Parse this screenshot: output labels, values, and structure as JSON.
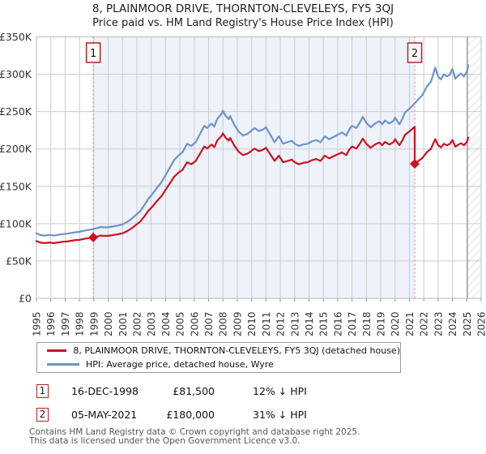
{
  "header": {
    "title": "8, PLAINMOOR DRIVE, THORNTON-CLEVELEYS, FY5 3QJ",
    "subtitle": "Price paid vs. HM Land Registry's House Price Index (HPI)"
  },
  "legend": {
    "series1": "8, PLAINMOOR DRIVE, THORNTON-CLEVELEYS, FY5 3QJ (detached house)",
    "series2": "HPI: Average price, detached house, Wyre"
  },
  "annotations": [
    {
      "num": "1",
      "date": "16-DEC-1998",
      "price": "£81,500",
      "hpi_diff": "12% ↓ HPI"
    },
    {
      "num": "2",
      "date": "05-MAY-2021",
      "price": "£180,000",
      "hpi_diff": "31% ↓ HPI"
    }
  ],
  "footer": {
    "line1": "Contains HM Land Registry data © Crown copyright and database right 2025.",
    "line2": "This data is licensed under the Open Government Licence v3.0."
  },
  "colors": {
    "property_line": "#cc1122",
    "hpi_line": "#6b94c7",
    "shade": "#eef2fa",
    "grid": "#cccccc",
    "plot_border": "#bbbbbb",
    "sale_dotted": "#e88a8a",
    "marker_border": "#b22222",
    "hatch_line": "#c9c9c9",
    "hatch_edge": "#999999",
    "axis_text": "#333333"
  },
  "chart_data": {
    "type": "line",
    "title": "8, PLAINMOOR DRIVE, THORNTON-CLEVELEYS, FY5 3QJ",
    "subtitle": "Price paid vs. HM Land Registry's House Price Index (HPI)",
    "xlim": [
      1995,
      2026
    ],
    "ylim": [
      0,
      350000
    ],
    "grid": true,
    "legend_position": "bottom",
    "y_ticks": [
      {
        "value": 0,
        "label": "£0"
      },
      {
        "value": 50,
        "label": "£50K"
      },
      {
        "value": 100,
        "label": "£100K"
      },
      {
        "value": 150,
        "label": "£150K"
      },
      {
        "value": 200,
        "label": "£200K"
      },
      {
        "value": 250,
        "label": "£250K"
      },
      {
        "value": 300,
        "label": "£300K"
      },
      {
        "value": 350,
        "label": "£350K"
      }
    ],
    "x_ticks": [
      1995,
      1996,
      1997,
      1998,
      1999,
      2000,
      2001,
      2002,
      2003,
      2004,
      2005,
      2006,
      2007,
      2008,
      2009,
      2010,
      2011,
      2012,
      2013,
      2014,
      2015,
      2016,
      2017,
      2018,
      2019,
      2020,
      2021,
      2022,
      2023,
      2024,
      2025,
      2026
    ],
    "shaded_region": [
      1998.96,
      2021.37
    ],
    "hatch_region": [
      2025.05,
      2026
    ],
    "sales": [
      {
        "num": "1",
        "x": 1998.96,
        "date": "16-DEC-1998",
        "price_k": 81.5,
        "pct_below_hpi": 12
      },
      {
        "num": "2",
        "x": 2021.37,
        "date": "05-MAY-2021",
        "price_k": 180.0,
        "pct_below_hpi": 31
      }
    ],
    "series": [
      {
        "name": "HPI: Average price, detached house, Wyre",
        "unit": "GBP_thousands",
        "points": [
          [
            1995.0,
            87
          ],
          [
            1995.3,
            84.5
          ],
          [
            1995.6,
            84
          ],
          [
            1995.9,
            85
          ],
          [
            1996.2,
            84
          ],
          [
            1996.5,
            85
          ],
          [
            1996.8,
            86
          ],
          [
            1997.1,
            86.5
          ],
          [
            1997.4,
            87.5
          ],
          [
            1997.7,
            88.5
          ],
          [
            1998.0,
            89
          ],
          [
            1998.3,
            90.5
          ],
          [
            1998.6,
            91.5
          ],
          [
            1998.96,
            92.6
          ],
          [
            1999.2,
            94
          ],
          [
            1999.5,
            95.5
          ],
          [
            1999.8,
            95
          ],
          [
            2000.1,
            95.5
          ],
          [
            2000.4,
            96.5
          ],
          [
            2000.7,
            97.5
          ],
          [
            2001.0,
            99
          ],
          [
            2001.3,
            102
          ],
          [
            2001.6,
            106
          ],
          [
            2001.9,
            111
          ],
          [
            2002.2,
            116
          ],
          [
            2002.5,
            124
          ],
          [
            2002.8,
            133
          ],
          [
            2003.1,
            140
          ],
          [
            2003.4,
            148
          ],
          [
            2003.7,
            155
          ],
          [
            2004.0,
            165
          ],
          [
            2004.3,
            175
          ],
          [
            2004.6,
            185
          ],
          [
            2004.9,
            191
          ],
          [
            2005.2,
            196
          ],
          [
            2005.5,
            207
          ],
          [
            2005.8,
            204
          ],
          [
            2006.1,
            209
          ],
          [
            2006.4,
            220
          ],
          [
            2006.7,
            231
          ],
          [
            2006.9,
            228
          ],
          [
            2007.2,
            234
          ],
          [
            2007.4,
            230
          ],
          [
            2007.6,
            240
          ],
          [
            2007.9,
            247
          ],
          [
            2008.0,
            251
          ],
          [
            2008.2,
            244
          ],
          [
            2008.4,
            240
          ],
          [
            2008.5,
            244
          ],
          [
            2008.8,
            232
          ],
          [
            2009.1,
            223
          ],
          [
            2009.4,
            218
          ],
          [
            2009.7,
            220
          ],
          [
            2009.9,
            223
          ],
          [
            2010.2,
            228
          ],
          [
            2010.5,
            224
          ],
          [
            2010.8,
            226
          ],
          [
            2011.0,
            229
          ],
          [
            2011.3,
            219
          ],
          [
            2011.6,
            209
          ],
          [
            2011.9,
            217
          ],
          [
            2012.2,
            207
          ],
          [
            2012.5,
            209
          ],
          [
            2012.8,
            211
          ],
          [
            2013.0,
            207
          ],
          [
            2013.3,
            204
          ],
          [
            2013.6,
            206
          ],
          [
            2013.9,
            207
          ],
          [
            2014.2,
            210
          ],
          [
            2014.5,
            212
          ],
          [
            2014.8,
            209
          ],
          [
            2015.1,
            217
          ],
          [
            2015.4,
            213
          ],
          [
            2015.7,
            216
          ],
          [
            2016.0,
            219
          ],
          [
            2016.3,
            222
          ],
          [
            2016.6,
            218
          ],
          [
            2016.8,
            226
          ],
          [
            2017.0,
            231
          ],
          [
            2017.3,
            228
          ],
          [
            2017.5,
            234
          ],
          [
            2017.75,
            243
          ],
          [
            2018.0,
            235
          ],
          [
            2018.3,
            229
          ],
          [
            2018.6,
            234
          ],
          [
            2018.9,
            237
          ],
          [
            2019.1,
            233
          ],
          [
            2019.3,
            238
          ],
          [
            2019.6,
            234
          ],
          [
            2019.9,
            238
          ],
          [
            2020.0,
            242
          ],
          [
            2020.3,
            233
          ],
          [
            2020.5,
            240
          ],
          [
            2020.7,
            249
          ],
          [
            2021.0,
            254
          ],
          [
            2021.37,
            261
          ],
          [
            2021.6,
            266
          ],
          [
            2021.9,
            272
          ],
          [
            2022.2,
            283
          ],
          [
            2022.5,
            290
          ],
          [
            2022.8,
            309
          ],
          [
            2023.0,
            297
          ],
          [
            2023.2,
            293
          ],
          [
            2023.4,
            300
          ],
          [
            2023.6,
            297
          ],
          [
            2023.8,
            299
          ],
          [
            2024.0,
            307
          ],
          [
            2024.2,
            294
          ],
          [
            2024.4,
            298
          ],
          [
            2024.6,
            301
          ],
          [
            2024.8,
            297
          ],
          [
            2025.0,
            303
          ],
          [
            2025.1,
            312
          ]
        ]
      },
      {
        "name": "8, PLAINMOOR DRIVE, THORNTON-CLEVELEYS, FY5 3QJ (detached house)",
        "unit": "GBP_thousands",
        "points": [
          [
            1995.0,
            76.6
          ],
          [
            1995.3,
            74.4
          ],
          [
            1995.6,
            73.9
          ],
          [
            1995.9,
            74.8
          ],
          [
            1996.2,
            73.9
          ],
          [
            1996.5,
            74.8
          ],
          [
            1996.8,
            75.7
          ],
          [
            1997.1,
            76.1
          ],
          [
            1997.4,
            77.0
          ],
          [
            1997.7,
            77.9
          ],
          [
            1998.0,
            78.3
          ],
          [
            1998.3,
            79.6
          ],
          [
            1998.6,
            80.5
          ],
          [
            1998.96,
            81.5
          ],
          [
            1999.2,
            82.7
          ],
          [
            1999.5,
            84.0
          ],
          [
            1999.8,
            83.6
          ],
          [
            2000.1,
            84.0
          ],
          [
            2000.4,
            84.9
          ],
          [
            2000.7,
            85.8
          ],
          [
            2001.0,
            87.1
          ],
          [
            2001.3,
            89.8
          ],
          [
            2001.6,
            93.3
          ],
          [
            2001.9,
            97.7
          ],
          [
            2002.2,
            102.1
          ],
          [
            2002.5,
            109.1
          ],
          [
            2002.8,
            117.0
          ],
          [
            2003.1,
            123.2
          ],
          [
            2003.4,
            130.2
          ],
          [
            2003.7,
            136.4
          ],
          [
            2004.0,
            145.2
          ],
          [
            2004.3,
            154.0
          ],
          [
            2004.6,
            162.8
          ],
          [
            2004.9,
            168.1
          ],
          [
            2005.2,
            172.5
          ],
          [
            2005.5,
            182.2
          ],
          [
            2005.8,
            179.5
          ],
          [
            2006.1,
            183.9
          ],
          [
            2006.4,
            193.6
          ],
          [
            2006.7,
            203.3
          ],
          [
            2006.9,
            200.6
          ],
          [
            2007.2,
            205.9
          ],
          [
            2007.4,
            202.4
          ],
          [
            2007.6,
            211.2
          ],
          [
            2007.9,
            217.4
          ],
          [
            2008.0,
            220.9
          ],
          [
            2008.2,
            214.7
          ],
          [
            2008.4,
            211.2
          ],
          [
            2008.5,
            214.7
          ],
          [
            2008.8,
            204.2
          ],
          [
            2009.1,
            196.2
          ],
          [
            2009.4,
            191.8
          ],
          [
            2009.7,
            193.6
          ],
          [
            2009.9,
            196.2
          ],
          [
            2010.2,
            200.6
          ],
          [
            2010.5,
            197.1
          ],
          [
            2010.8,
            198.9
          ],
          [
            2011.0,
            201.5
          ],
          [
            2011.3,
            192.7
          ],
          [
            2011.6,
            183.9
          ],
          [
            2011.9,
            191.0
          ],
          [
            2012.2,
            182.2
          ],
          [
            2012.5,
            183.9
          ],
          [
            2012.8,
            185.7
          ],
          [
            2013.0,
            182.2
          ],
          [
            2013.3,
            179.5
          ],
          [
            2013.6,
            181.3
          ],
          [
            2013.9,
            182.2
          ],
          [
            2014.2,
            184.8
          ],
          [
            2014.5,
            186.6
          ],
          [
            2014.8,
            183.9
          ],
          [
            2015.1,
            191.0
          ],
          [
            2015.4,
            187.4
          ],
          [
            2015.7,
            190.1
          ],
          [
            2016.0,
            192.7
          ],
          [
            2016.3,
            195.4
          ],
          [
            2016.6,
            191.8
          ],
          [
            2016.8,
            198.9
          ],
          [
            2017.0,
            203.3
          ],
          [
            2017.3,
            200.6
          ],
          [
            2017.5,
            205.9
          ],
          [
            2017.75,
            213.8
          ],
          [
            2018.0,
            206.8
          ],
          [
            2018.3,
            201.5
          ],
          [
            2018.6,
            205.9
          ],
          [
            2018.9,
            208.6
          ],
          [
            2019.1,
            205.0
          ],
          [
            2019.3,
            209.4
          ],
          [
            2019.6,
            205.9
          ],
          [
            2019.9,
            209.4
          ],
          [
            2020.0,
            213.0
          ],
          [
            2020.3,
            205.0
          ],
          [
            2020.5,
            211.2
          ],
          [
            2020.7,
            219.1
          ],
          [
            2021.0,
            223.5
          ],
          [
            2021.37,
            229.7
          ],
          [
            2021.37,
            180.0
          ],
          [
            2021.6,
            183.5
          ],
          [
            2021.9,
            187.7
          ],
          [
            2022.2,
            195.3
          ],
          [
            2022.5,
            200.1
          ],
          [
            2022.8,
            213.2
          ],
          [
            2023.0,
            204.9
          ],
          [
            2023.2,
            202.2
          ],
          [
            2023.4,
            207.0
          ],
          [
            2023.6,
            204.9
          ],
          [
            2023.8,
            206.3
          ],
          [
            2024.0,
            211.8
          ],
          [
            2024.2,
            202.9
          ],
          [
            2024.4,
            205.6
          ],
          [
            2024.6,
            207.7
          ],
          [
            2024.8,
            204.9
          ],
          [
            2025.0,
            209.1
          ],
          [
            2025.1,
            215.3
          ]
        ]
      }
    ]
  }
}
